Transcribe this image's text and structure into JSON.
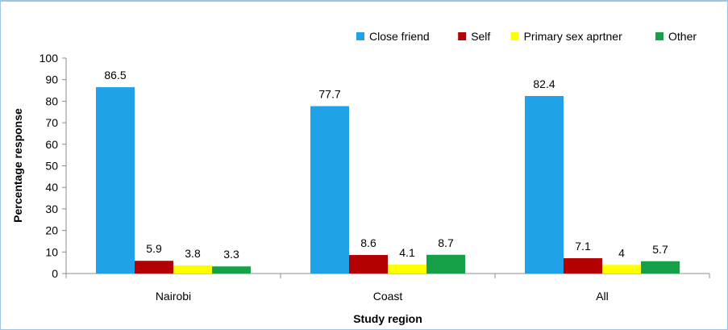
{
  "chart_data": {
    "type": "bar",
    "title": "",
    "xlabel": "Study region",
    "ylabel": "Percentage response",
    "categories": [
      "Nairobi",
      "Coast",
      "All"
    ],
    "series": [
      {
        "name": "Close friend",
        "values": [
          86.5,
          77.7,
          82.4
        ],
        "color": "#1fa2e8"
      },
      {
        "name": "Self",
        "values": [
          5.9,
          8.6,
          7.1
        ],
        "color": "#b40000"
      },
      {
        "name": "Primary sex aprtner",
        "values": [
          3.8,
          4.1,
          4
        ],
        "color": "#ffff00"
      },
      {
        "name": "Other",
        "values": [
          3.3,
          8.7,
          5.7
        ],
        "color": "#16a148"
      }
    ],
    "data_labels": [
      [
        "86.5",
        "77.7",
        "82.4"
      ],
      [
        "5.9",
        "8.6",
        "7.1"
      ],
      [
        "3.8",
        "4.1",
        "4"
      ],
      [
        "3.3",
        "8.7",
        "5.7"
      ]
    ],
    "ylim": [
      0,
      100
    ],
    "yticks": [
      0,
      10,
      20,
      30,
      40,
      50,
      60,
      70,
      80,
      90,
      100
    ],
    "grid": false,
    "legend_position": "top-right"
  }
}
